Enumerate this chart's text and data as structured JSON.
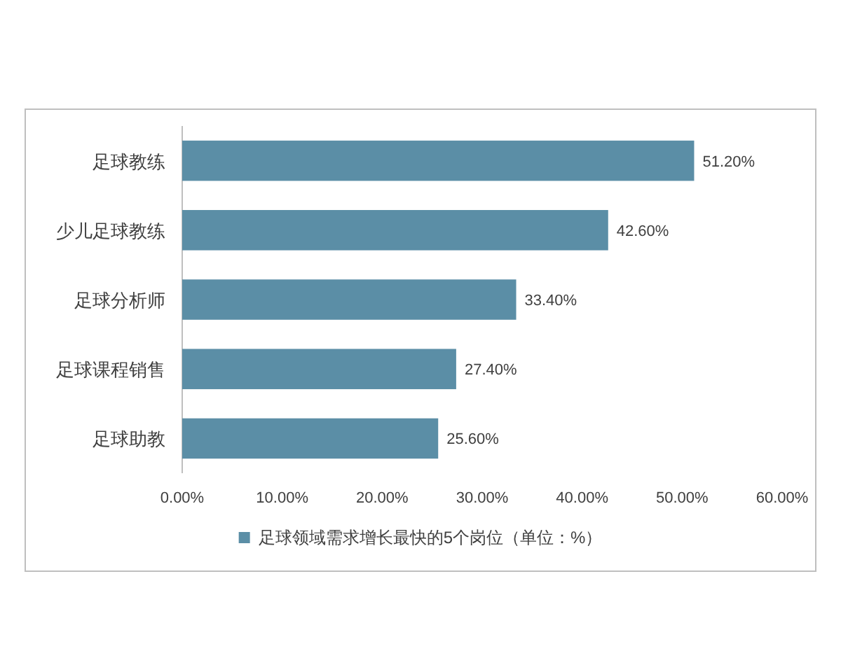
{
  "chart_data": {
    "type": "bar",
    "orientation": "horizontal",
    "categories": [
      "足球教练",
      "少儿足球教练",
      "足球分析师",
      "足球课程销售",
      "足球助教"
    ],
    "series": [
      {
        "name": "足球领域需求增长最快的5个岗位（单位：%）",
        "color": "#5b8ea6",
        "values": [
          51.2,
          42.6,
          33.4,
          27.4,
          25.6
        ],
        "value_labels": [
          "51.20%",
          "42.60%",
          "33.40%",
          "27.40%",
          "25.60%"
        ]
      }
    ],
    "xlim": [
      0,
      60
    ],
    "xticks": [
      {
        "value": 0,
        "label": "0.00%"
      },
      {
        "value": 10,
        "label": "10.00%"
      },
      {
        "value": 20,
        "label": "20.00%"
      },
      {
        "value": 30,
        "label": "30.00%"
      },
      {
        "value": 40,
        "label": "40.00%"
      },
      {
        "value": 50,
        "label": "50.00%"
      },
      {
        "value": 60,
        "label": "60.00%"
      }
    ],
    "legend": "bottom"
  }
}
